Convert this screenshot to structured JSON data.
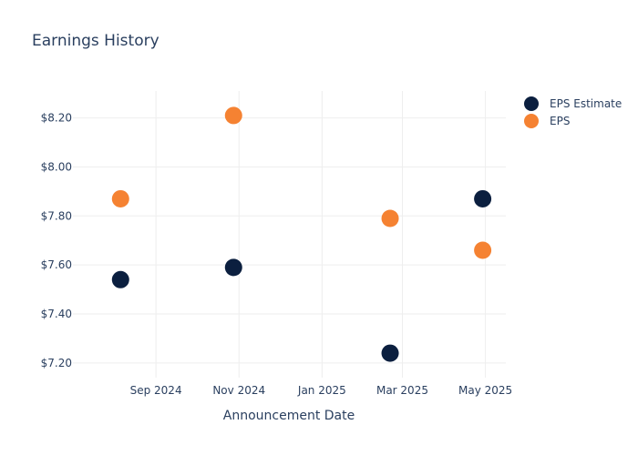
{
  "chart_data": {
    "type": "scatter",
    "title": "Earnings History",
    "xlabel": "Announcement Date",
    "ylabel": "",
    "x_ticks": [
      "Sep 2024",
      "Nov 2024",
      "Jan 2025",
      "Mar 2025",
      "May 2025"
    ],
    "x_tick_dates": [
      "2024-09-01",
      "2024-11-01",
      "2025-01-01",
      "2025-03-01",
      "2025-05-01"
    ],
    "xlim": [
      "2024-07-02",
      "2025-05-16"
    ],
    "y_ticks": [
      "$7.20",
      "$7.40",
      "$7.60",
      "$7.80",
      "$8.00",
      "$8.20"
    ],
    "y_tick_values": [
      7.2,
      7.4,
      7.6,
      7.8,
      8.0,
      8.2
    ],
    "ylim": [
      7.14,
      8.31
    ],
    "grid": true,
    "legend_position": "top-right",
    "series": [
      {
        "name": "EPS Estimate",
        "color": "#0b1f3f",
        "points": [
          {
            "x": "2024-08-06",
            "y": 7.54
          },
          {
            "x": "2024-10-28",
            "y": 7.59
          },
          {
            "x": "2025-02-20",
            "y": 7.24
          },
          {
            "x": "2025-04-29",
            "y": 7.87
          }
        ]
      },
      {
        "name": "EPS",
        "color": "#f58232",
        "points": [
          {
            "x": "2024-08-06",
            "y": 7.87
          },
          {
            "x": "2024-10-28",
            "y": 8.21
          },
          {
            "x": "2025-02-20",
            "y": 7.79
          },
          {
            "x": "2025-04-29",
            "y": 7.66
          }
        ]
      }
    ]
  }
}
